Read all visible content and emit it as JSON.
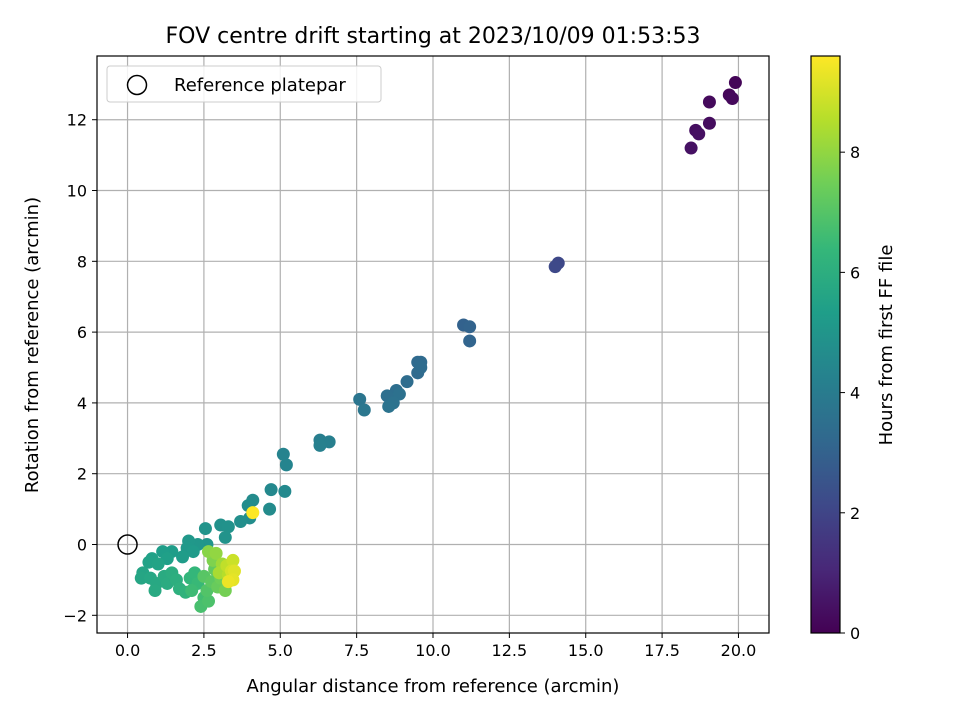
{
  "chart_data": {
    "type": "scatter",
    "title": "FOV centre drift starting at 2023/10/09 01:53:53",
    "xlabel": "Angular distance from reference (arcmin)",
    "ylabel": "Rotation from reference (arcmin)",
    "xlim": [
      -1.0,
      21.0
    ],
    "ylim": [
      -2.5,
      13.8
    ],
    "xticks": [
      0.0,
      2.5,
      5.0,
      7.5,
      10.0,
      12.5,
      15.0,
      17.5,
      20.0
    ],
    "xtick_labels": [
      "0.0",
      "2.5",
      "5.0",
      "7.5",
      "10.0",
      "12.5",
      "15.0",
      "17.5",
      "20.0"
    ],
    "yticks": [
      -2,
      0,
      2,
      4,
      6,
      8,
      10,
      12
    ],
    "ytick_labels": [
      "−2",
      "0",
      "2",
      "4",
      "6",
      "8",
      "10",
      "12"
    ],
    "grid": true,
    "colormap": "viridis",
    "colorbar": {
      "label": "Hours from first FF file",
      "range": [
        0,
        9.6
      ],
      "ticks": [
        0,
        2,
        4,
        6,
        8
      ],
      "tick_labels": [
        "0",
        "2",
        "4",
        "6",
        "8"
      ]
    },
    "legend": {
      "position": "upper-left",
      "entries": [
        {
          "label": "Reference platepar",
          "marker": "open-circle"
        }
      ]
    },
    "reference_point": {
      "x": 0.0,
      "y": 0.0
    },
    "colors": {
      "grid": "#b0b0b0",
      "reference_marker": "#000000",
      "viridis": [
        "#440154",
        "#482878",
        "#3e4989",
        "#31688e",
        "#26828e",
        "#1f9e89",
        "#35b779",
        "#6ece58",
        "#b5de2b",
        "#fde725"
      ]
    },
    "points": [
      {
        "x": 19.9,
        "y": 13.05,
        "t": 0.1
      },
      {
        "x": 19.7,
        "y": 12.7,
        "t": 0.15
      },
      {
        "x": 19.8,
        "y": 12.6,
        "t": 0.2
      },
      {
        "x": 19.05,
        "y": 12.5,
        "t": 0.25
      },
      {
        "x": 19.05,
        "y": 11.9,
        "t": 0.3
      },
      {
        "x": 18.6,
        "y": 11.7,
        "t": 0.35
      },
      {
        "x": 18.7,
        "y": 11.6,
        "t": 0.4
      },
      {
        "x": 18.45,
        "y": 11.2,
        "t": 0.45
      },
      {
        "x": 14.1,
        "y": 7.95,
        "t": 2.1
      },
      {
        "x": 14.0,
        "y": 7.85,
        "t": 2.15
      },
      {
        "x": 11.0,
        "y": 6.2,
        "t": 3.0
      },
      {
        "x": 11.2,
        "y": 6.15,
        "t": 3.05
      },
      {
        "x": 11.2,
        "y": 5.75,
        "t": 3.1
      },
      {
        "x": 9.5,
        "y": 5.15,
        "t": 3.3
      },
      {
        "x": 9.6,
        "y": 5.15,
        "t": 3.32
      },
      {
        "x": 9.5,
        "y": 4.85,
        "t": 3.34
      },
      {
        "x": 9.6,
        "y": 5.0,
        "t": 3.36
      },
      {
        "x": 9.15,
        "y": 4.6,
        "t": 3.4
      },
      {
        "x": 8.8,
        "y": 4.35,
        "t": 3.45
      },
      {
        "x": 8.5,
        "y": 4.2,
        "t": 3.5
      },
      {
        "x": 8.9,
        "y": 4.25,
        "t": 3.55
      },
      {
        "x": 8.7,
        "y": 4.0,
        "t": 3.6
      },
      {
        "x": 8.55,
        "y": 3.9,
        "t": 3.65
      },
      {
        "x": 7.6,
        "y": 4.1,
        "t": 3.75
      },
      {
        "x": 7.75,
        "y": 3.8,
        "t": 3.8
      },
      {
        "x": 6.3,
        "y": 2.95,
        "t": 4.1
      },
      {
        "x": 6.6,
        "y": 2.9,
        "t": 4.15
      },
      {
        "x": 6.3,
        "y": 2.8,
        "t": 4.2
      },
      {
        "x": 5.1,
        "y": 2.55,
        "t": 4.3
      },
      {
        "x": 5.2,
        "y": 2.25,
        "t": 4.35
      },
      {
        "x": 4.7,
        "y": 1.55,
        "t": 4.5
      },
      {
        "x": 5.15,
        "y": 1.5,
        "t": 4.55
      },
      {
        "x": 4.65,
        "y": 1.0,
        "t": 4.6
      },
      {
        "x": 4.1,
        "y": 1.25,
        "t": 4.62
      },
      {
        "x": 3.95,
        "y": 1.1,
        "t": 4.65
      },
      {
        "x": 4.0,
        "y": 0.75,
        "t": 4.7
      },
      {
        "x": 3.7,
        "y": 0.65,
        "t": 4.75
      },
      {
        "x": 3.05,
        "y": 0.55,
        "t": 4.85
      },
      {
        "x": 3.3,
        "y": 0.5,
        "t": 4.88
      },
      {
        "x": 3.2,
        "y": 0.2,
        "t": 4.9
      },
      {
        "x": 2.55,
        "y": 0.45,
        "t": 4.95
      },
      {
        "x": 2.6,
        "y": 0.0,
        "t": 5.0
      },
      {
        "x": 2.3,
        "y": 0.0,
        "t": 5.05
      },
      {
        "x": 2.0,
        "y": 0.1,
        "t": 5.1
      },
      {
        "x": 1.95,
        "y": -0.1,
        "t": 5.15
      },
      {
        "x": 2.15,
        "y": -0.2,
        "t": 5.2
      },
      {
        "x": 1.8,
        "y": -0.35,
        "t": 5.25
      },
      {
        "x": 1.45,
        "y": -0.2,
        "t": 5.3
      },
      {
        "x": 1.15,
        "y": -0.2,
        "t": 5.35
      },
      {
        "x": 1.3,
        "y": -0.4,
        "t": 5.4
      },
      {
        "x": 0.8,
        "y": -0.4,
        "t": 5.45
      },
      {
        "x": 0.7,
        "y": -0.5,
        "t": 5.5
      },
      {
        "x": 1.0,
        "y": -0.55,
        "t": 5.55
      },
      {
        "x": 0.5,
        "y": -0.8,
        "t": 5.6
      },
      {
        "x": 0.45,
        "y": -0.95,
        "t": 5.65
      },
      {
        "x": 0.75,
        "y": -0.95,
        "t": 5.7
      },
      {
        "x": 0.95,
        "y": -1.1,
        "t": 5.75
      },
      {
        "x": 0.9,
        "y": -1.3,
        "t": 5.8
      },
      {
        "x": 1.2,
        "y": -0.9,
        "t": 5.85
      },
      {
        "x": 1.3,
        "y": -1.1,
        "t": 5.9
      },
      {
        "x": 1.45,
        "y": -0.8,
        "t": 5.95
      },
      {
        "x": 1.6,
        "y": -1.0,
        "t": 6.0
      },
      {
        "x": 1.7,
        "y": -1.25,
        "t": 6.1
      },
      {
        "x": 1.9,
        "y": -1.35,
        "t": 6.2
      },
      {
        "x": 2.05,
        "y": -0.95,
        "t": 6.3
      },
      {
        "x": 2.2,
        "y": -0.8,
        "t": 6.35
      },
      {
        "x": 2.3,
        "y": -1.1,
        "t": 6.45
      },
      {
        "x": 2.1,
        "y": -1.3,
        "t": 6.55
      },
      {
        "x": 2.5,
        "y": -1.5,
        "t": 6.65
      },
      {
        "x": 2.4,
        "y": -1.75,
        "t": 6.75
      },
      {
        "x": 2.65,
        "y": -1.6,
        "t": 6.85
      },
      {
        "x": 2.6,
        "y": -1.3,
        "t": 6.95
      },
      {
        "x": 2.5,
        "y": -0.9,
        "t": 7.05
      },
      {
        "x": 2.75,
        "y": -1.05,
        "t": 7.15
      },
      {
        "x": 2.85,
        "y": -0.7,
        "t": 7.25
      },
      {
        "x": 2.95,
        "y": -1.2,
        "t": 7.35
      },
      {
        "x": 3.05,
        "y": -0.95,
        "t": 7.45
      },
      {
        "x": 3.2,
        "y": -1.3,
        "t": 7.55
      },
      {
        "x": 2.8,
        "y": -0.45,
        "t": 7.7
      },
      {
        "x": 2.65,
        "y": -0.2,
        "t": 7.85
      },
      {
        "x": 2.9,
        "y": -0.25,
        "t": 8.0
      },
      {
        "x": 3.1,
        "y": -0.55,
        "t": 8.2
      },
      {
        "x": 3.0,
        "y": -0.8,
        "t": 8.35
      },
      {
        "x": 3.3,
        "y": -0.85,
        "t": 8.55
      },
      {
        "x": 3.25,
        "y": -0.6,
        "t": 8.7
      },
      {
        "x": 3.45,
        "y": -0.45,
        "t": 8.85
      },
      {
        "x": 3.4,
        "y": -0.75,
        "t": 9.0
      },
      {
        "x": 3.5,
        "y": -0.75,
        "t": 9.15
      },
      {
        "x": 3.45,
        "y": -1.0,
        "t": 9.25
      },
      {
        "x": 3.3,
        "y": -1.05,
        "t": 9.35
      },
      {
        "x": 4.1,
        "y": 0.9,
        "t": 9.6
      }
    ]
  }
}
